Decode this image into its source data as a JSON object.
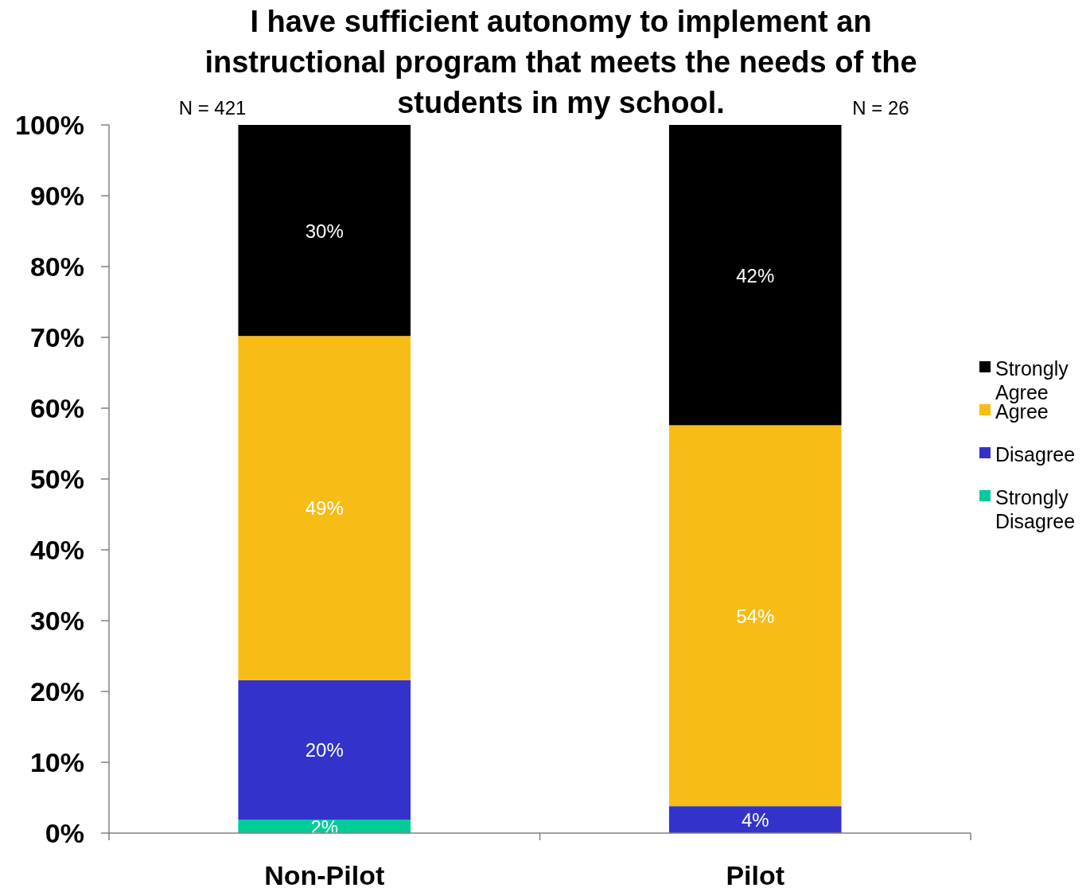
{
  "chart_data": {
    "type": "bar",
    "title": "I have sufficient autonomy to implement an instructional program that meets the needs of the students in my school.",
    "categories": [
      "Non-Pilot",
      "Pilot"
    ],
    "stacked": true,
    "series": [
      {
        "name": "Strongly Disagree",
        "color": "#00cc99",
        "values": [
          1.9,
          0
        ],
        "value_labels": [
          "2%",
          null
        ]
      },
      {
        "name": "Disagree",
        "color": "#3333cc",
        "values": [
          19.7,
          3.8
        ],
        "value_labels": [
          "20%",
          "4%"
        ]
      },
      {
        "name": "Agree",
        "color": "#f8bc17",
        "values": [
          48.6,
          53.8
        ],
        "value_labels": [
          "49%",
          "54%"
        ]
      },
      {
        "name": "Strongly Agree",
        "color": "#000000",
        "values": [
          29.8,
          42.4
        ],
        "value_labels": [
          "30%",
          "42%"
        ]
      }
    ],
    "ylim": [
      0,
      100
    ],
    "yticks": [
      {
        "value": 0,
        "label": "0%"
      },
      {
        "value": 10,
        "label": "10%"
      },
      {
        "value": 20,
        "label": "20%"
      },
      {
        "value": 30,
        "label": "30%"
      },
      {
        "value": 40,
        "label": "40%"
      },
      {
        "value": 50,
        "label": "50%"
      },
      {
        "value": 60,
        "label": "60%"
      },
      {
        "value": 70,
        "label": "70%"
      },
      {
        "value": 80,
        "label": "80%"
      },
      {
        "value": 90,
        "label": "90%"
      },
      {
        "value": 100,
        "label": "100%"
      }
    ],
    "annotations": [
      "N = 421",
      "N = 26"
    ],
    "legend": "right",
    "grid": false
  }
}
